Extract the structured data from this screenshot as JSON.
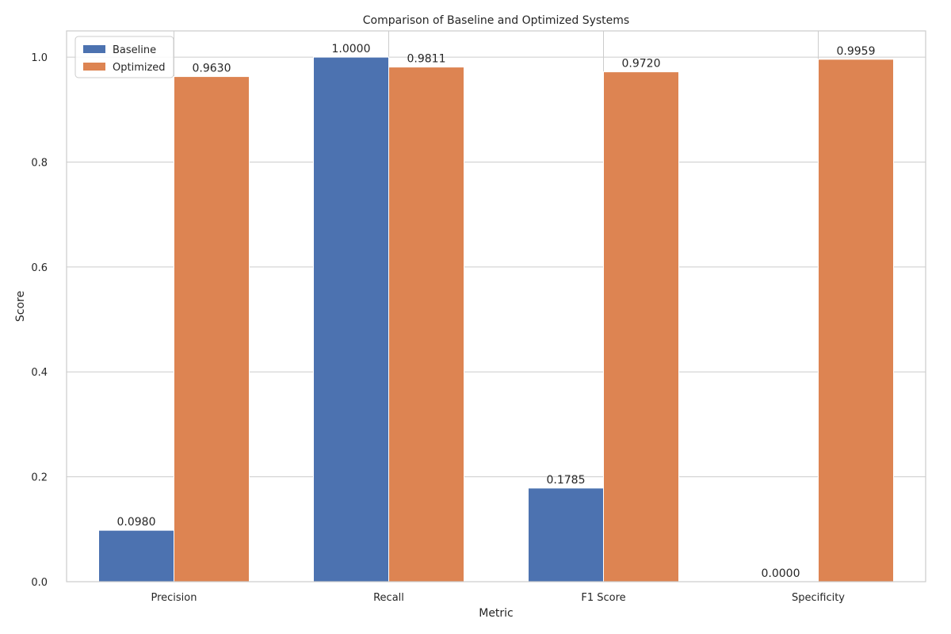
{
  "chart_data": {
    "type": "bar",
    "title": "Comparison of Baseline and Optimized Systems",
    "xlabel": "Metric",
    "ylabel": "Score",
    "categories": [
      "Precision",
      "Recall",
      "F1 Score",
      "Specificity"
    ],
    "series": [
      {
        "name": "Baseline",
        "color": "#4c72b0",
        "values": [
          0.098,
          1.0,
          0.1785,
          0.0
        ],
        "labels": [
          "0.0980",
          "1.0000",
          "0.1785",
          "0.0000"
        ]
      },
      {
        "name": "Optimized",
        "color": "#dd8452",
        "values": [
          0.963,
          0.9811,
          0.972,
          0.9959
        ],
        "labels": [
          "0.9630",
          "0.9811",
          "0.9720",
          "0.9959"
        ]
      }
    ],
    "ylim": [
      0,
      1.05
    ],
    "yticks": [
      0.0,
      0.2,
      0.4,
      0.6,
      0.8,
      1.0
    ],
    "ytick_labels": [
      "0.0",
      "0.2",
      "0.4",
      "0.6",
      "0.8",
      "1.0"
    ],
    "grid": true,
    "legend_position": "top-left"
  }
}
